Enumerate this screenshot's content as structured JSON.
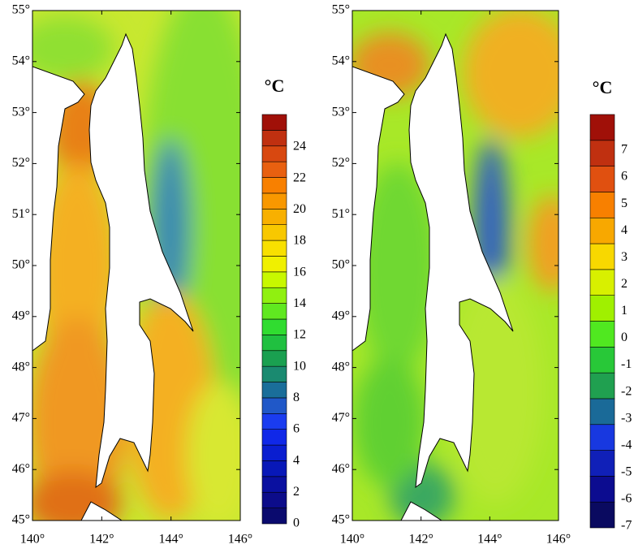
{
  "panels": [
    {
      "yticks": [
        "55°",
        "54°",
        "53°",
        "52°",
        "51°",
        "50°",
        "49°",
        "48°",
        "47°",
        "46°",
        "45°"
      ],
      "xticks": [
        "140°",
        "142°",
        "144°",
        "146°"
      ],
      "colorbar": {
        "unit": "°C",
        "labels": [
          "24",
          "22",
          "20",
          "18",
          "16",
          "14",
          "12",
          "10",
          "8",
          "6",
          "4",
          "2",
          "0"
        ],
        "colors": [
          "#0a0a6e",
          "#0c0c8a",
          "#0a10a0",
          "#0818b8",
          "#0a1ed0",
          "#1028e8",
          "#1a3cf0",
          "#2058c8",
          "#1a6e9a",
          "#1a8a70",
          "#1aa050",
          "#20c040",
          "#30dc30",
          "#60e820",
          "#90f010",
          "#c8f800",
          "#f0f000",
          "#f8e000",
          "#f8c800",
          "#f8b000",
          "#f89800",
          "#f88000",
          "#e86010",
          "#d84810",
          "#c03010",
          "#a01008"
        ]
      }
    },
    {
      "yticks": [
        "55°",
        "54°",
        "53°",
        "52°",
        "51°",
        "50°",
        "49°",
        "48°",
        "47°",
        "46°",
        "45°"
      ],
      "xticks": [
        "140°",
        "142°",
        "144°",
        "146°"
      ],
      "colorbar": {
        "unit": "°C",
        "labels": [
          "7",
          "6",
          "5",
          "4",
          "3",
          "2",
          "1",
          "0",
          "-1",
          "-2",
          "-3",
          "-4",
          "-5",
          "-6",
          "-7"
        ],
        "colors": [
          "#0a0a60",
          "#0c0c90",
          "#1020b8",
          "#1838e0",
          "#1a6a98",
          "#20a050",
          "#28c838",
          "#50e820",
          "#a0f000",
          "#d8f000",
          "#f8d800",
          "#f8a800",
          "#f88000",
          "#e05010",
          "#c03010",
          "#a01008"
        ]
      }
    }
  ]
}
